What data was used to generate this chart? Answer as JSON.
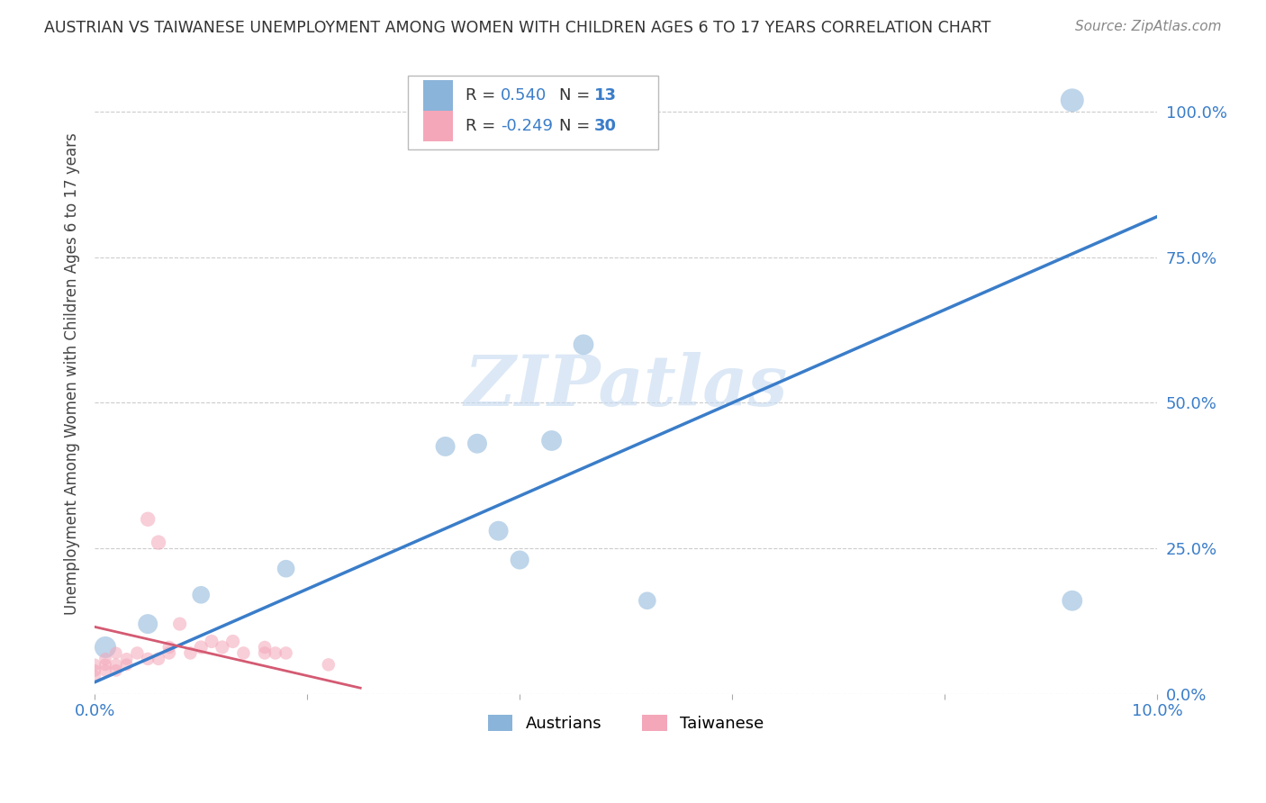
{
  "title": "AUSTRIAN VS TAIWANESE UNEMPLOYMENT AMONG WOMEN WITH CHILDREN AGES 6 TO 17 YEARS CORRELATION CHART",
  "source": "Source: ZipAtlas.com",
  "ylabel": "Unemployment Among Women with Children Ages 6 to 17 years",
  "xlim": [
    0.0,
    0.1
  ],
  "ylim": [
    0.0,
    1.1
  ],
  "xticks": [
    0.0,
    0.02,
    0.04,
    0.06,
    0.08,
    0.1
  ],
  "yticks": [
    0.0,
    0.25,
    0.5,
    0.75,
    1.0
  ],
  "ytick_labels": [
    "0.0%",
    "25.0%",
    "50.0%",
    "75.0%",
    "100.0%"
  ],
  "xtick_labels": [
    "0.0%",
    "",
    "",
    "",
    "",
    "10.0%"
  ],
  "blue_R": 0.54,
  "blue_N": 13,
  "pink_R": -0.249,
  "pink_N": 30,
  "blue_color": "#8ab4d9",
  "pink_color": "#f4a7b9",
  "blue_line_color": "#3a7dc9",
  "pink_line_color": "#d45a72",
  "watermark_text": "ZIPatlas",
  "blue_scatter_x": [
    0.001,
    0.005,
    0.01,
    0.018,
    0.033,
    0.036,
    0.043,
    0.046,
    0.052,
    0.092,
    0.04,
    0.038,
    0.092
  ],
  "blue_scatter_y": [
    0.08,
    0.12,
    0.17,
    0.215,
    0.425,
    0.43,
    0.435,
    0.6,
    0.16,
    0.16,
    0.23,
    0.28,
    1.02
  ],
  "blue_scatter_sizes": [
    300,
    250,
    200,
    200,
    250,
    250,
    270,
    270,
    200,
    270,
    230,
    250,
    350
  ],
  "pink_scatter_x": [
    0.0,
    0.0,
    0.0,
    0.001,
    0.001,
    0.001,
    0.002,
    0.002,
    0.002,
    0.003,
    0.003,
    0.004,
    0.005,
    0.005,
    0.006,
    0.006,
    0.007,
    0.007,
    0.008,
    0.009,
    0.01,
    0.011,
    0.012,
    0.013,
    0.014,
    0.016,
    0.016,
    0.017,
    0.018,
    0.022
  ],
  "pink_scatter_y": [
    0.03,
    0.04,
    0.05,
    0.04,
    0.05,
    0.06,
    0.04,
    0.05,
    0.07,
    0.05,
    0.06,
    0.07,
    0.06,
    0.3,
    0.06,
    0.26,
    0.07,
    0.08,
    0.12,
    0.07,
    0.08,
    0.09,
    0.08,
    0.09,
    0.07,
    0.07,
    0.08,
    0.07,
    0.07,
    0.05
  ],
  "pink_scatter_sizes": [
    100,
    100,
    100,
    100,
    100,
    100,
    100,
    100,
    100,
    100,
    100,
    110,
    110,
    140,
    110,
    140,
    110,
    110,
    120,
    110,
    120,
    120,
    120,
    120,
    110,
    110,
    110,
    110,
    110,
    110
  ],
  "blue_line_x": [
    0.0,
    0.1
  ],
  "blue_line_y": [
    0.02,
    0.82
  ],
  "pink_line_x": [
    0.0,
    0.025
  ],
  "pink_line_y": [
    0.115,
    0.01
  ],
  "background_color": "#ffffff",
  "grid_color": "#cccccc"
}
